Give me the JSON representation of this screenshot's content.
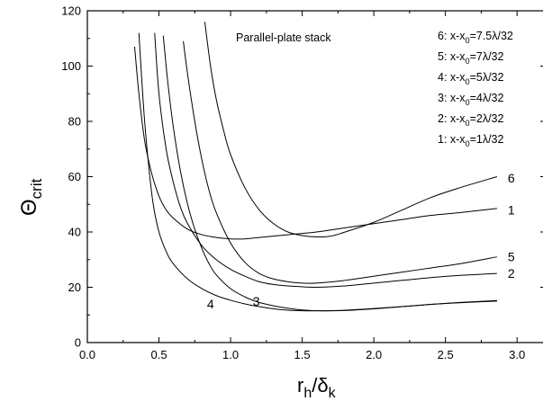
{
  "chart_data": {
    "type": "line",
    "title": "",
    "xlabel": {
      "main": "r",
      "sub1": "h",
      "mid": "/δ",
      "sub2": "k"
    },
    "ylabel": {
      "symbol": "Θ",
      "sub": "crit"
    },
    "xlim": [
      0.0,
      3.2
    ],
    "ylim": [
      0,
      120
    ],
    "x_ticks": [
      "0.0",
      "0.5",
      "1.0",
      "1.5",
      "2.0",
      "2.5",
      "3.0"
    ],
    "y_ticks": [
      "0",
      "20",
      "40",
      "60",
      "80",
      "100",
      "120"
    ],
    "grid": false,
    "annotation": "Parallel-plate stack",
    "legend": {
      "placement": "top-right",
      "entries": [
        {
          "num": "6:",
          "pre": "x-x",
          "sub": "0",
          "post": "=7.5λ/32"
        },
        {
          "num": "5:",
          "pre": "x-x",
          "sub": "0",
          "post": "=7λ/32"
        },
        {
          "num": "4:",
          "pre": "x-x",
          "sub": "0",
          "post": "=5λ/32"
        },
        {
          "num": "3:",
          "pre": "x-x",
          "sub": "0",
          "post": "=4λ/32"
        },
        {
          "num": "2:",
          "pre": "x-x",
          "sub": "0",
          "post": "=2λ/32"
        },
        {
          "num": "1:",
          "pre": "x-x",
          "sub": "0",
          "post": "=1λ/32"
        }
      ]
    },
    "series": [
      {
        "name": "1",
        "x": [
          0.33,
          0.36,
          0.4,
          0.45,
          0.5,
          0.55,
          0.6,
          0.7,
          0.8,
          0.9,
          1.0,
          1.1,
          1.2,
          1.4,
          1.6,
          1.8,
          2.0,
          2.2,
          2.4,
          2.6,
          2.86
        ],
        "y": [
          107,
          90,
          73,
          61,
          53,
          48,
          45,
          41,
          39,
          38,
          37.5,
          37.5,
          38,
          39,
          40,
          41.5,
          43,
          44.5,
          46,
          47,
          48.5
        ]
      },
      {
        "name": "2",
        "x": [
          0.47,
          0.5,
          0.55,
          0.6,
          0.65,
          0.7,
          0.8,
          0.9,
          1.0,
          1.1,
          1.2,
          1.3,
          1.4,
          1.6,
          1.8,
          2.0,
          2.2,
          2.4,
          2.6,
          2.86
        ],
        "y": [
          112,
          90,
          70,
          58,
          49,
          43,
          35,
          30,
          26.5,
          24,
          22,
          21,
          20.5,
          20,
          20.5,
          21.5,
          22.5,
          23.5,
          24.3,
          25
        ]
      },
      {
        "name": "3",
        "x": [
          0.36,
          0.38,
          0.4,
          0.43,
          0.46,
          0.5,
          0.55,
          0.6,
          0.7,
          0.8,
          0.9,
          1.0,
          1.1,
          1.2,
          1.3,
          1.4,
          1.5,
          1.6,
          1.8,
          2.0,
          2.2,
          2.4,
          2.6,
          2.86
        ],
        "y": [
          112,
          95,
          80,
          63,
          50,
          40,
          33,
          28.5,
          23,
          19.5,
          17,
          15.3,
          14,
          13,
          12.2,
          11.7,
          11.5,
          11.5,
          11.7,
          12.3,
          13,
          13.8,
          14.4,
          15
        ]
      },
      {
        "name": "4",
        "x": [
          0.53,
          0.56,
          0.6,
          0.65,
          0.7,
          0.75,
          0.8,
          0.85,
          0.9,
          1.0,
          1.1,
          1.2,
          1.3,
          1.4,
          1.5,
          1.6,
          1.8,
          2.0,
          2.2,
          2.4,
          2.6,
          2.86
        ],
        "y": [
          111,
          95,
          78,
          62,
          50,
          41,
          34,
          28.5,
          24.5,
          19.5,
          16.5,
          14.5,
          13.3,
          12.4,
          11.8,
          11.5,
          11.6,
          12.2,
          13,
          13.8,
          14.5,
          15.2
        ]
      },
      {
        "name": "5",
        "x": [
          0.67,
          0.7,
          0.75,
          0.8,
          0.85,
          0.9,
          1.0,
          1.1,
          1.2,
          1.3,
          1.4,
          1.5,
          1.6,
          1.8,
          2.0,
          2.2,
          2.4,
          2.6,
          2.86
        ],
        "y": [
          109,
          97,
          80,
          66,
          55,
          47,
          36,
          29,
          25,
          23,
          22,
          21.5,
          21.5,
          22.5,
          24,
          25.5,
          27,
          28.5,
          31
        ]
      },
      {
        "name": "6",
        "x": [
          0.82,
          0.86,
          0.9,
          0.95,
          1.0,
          1.1,
          1.2,
          1.3,
          1.4,
          1.5,
          1.6,
          1.7,
          1.8,
          2.0,
          2.2,
          2.4,
          2.6,
          2.86
        ],
        "y": [
          116,
          100,
          88,
          77,
          68,
          56,
          48,
          43,
          40,
          38.7,
          38.2,
          38.5,
          40,
          43.5,
          48,
          52.5,
          56,
          60
        ]
      }
    ],
    "curve_labels": [
      {
        "text": "6",
        "x": 2.96,
        "y": 59.5
      },
      {
        "text": "1",
        "x": 2.96,
        "y": 48
      },
      {
        "text": "5",
        "x": 2.96,
        "y": 31
      },
      {
        "text": "2",
        "x": 2.96,
        "y": 25
      },
      {
        "text": "4",
        "x": 0.86,
        "y": 14
      },
      {
        "text": "3",
        "x": 1.18,
        "y": 15
      }
    ]
  }
}
